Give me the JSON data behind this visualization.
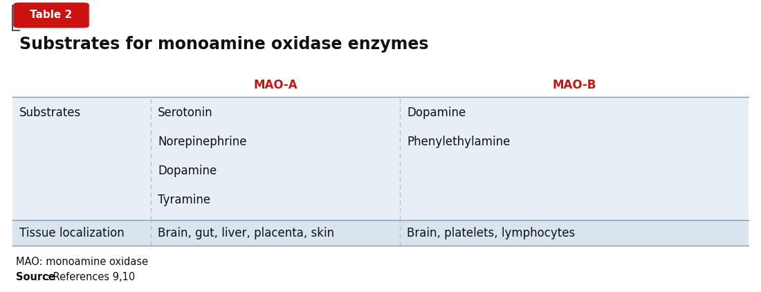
{
  "title": "Substrates for monoamine oxidase enzymes",
  "table_label": "Table 2",
  "bg_color": "#ffffff",
  "table_bg_light": "#e8eef5",
  "table_bg_dark": "#d8e4ee",
  "header_color": "#cc1111",
  "border_color": "#9aabb8",
  "dashed_color": "#aabbcc",
  "col_headers": [
    "MAO-A",
    "MAO-B"
  ],
  "rows": [
    {
      "label": "Substrates",
      "col1": [
        "Serotonin",
        "Norepinephrine",
        "Dopamine",
        "Tyramine"
      ],
      "col2": [
        "Dopamine",
        "Phenylethylamine"
      ]
    },
    {
      "label": "Tissue localization",
      "col1": [
        "Brain, gut, liver, placenta, skin"
      ],
      "col2": [
        "Brain, platelets, lymphocytes"
      ]
    }
  ],
  "footnote1": "MAO: monoamine oxidase",
  "footnote2_bold": "Source",
  "footnote2_normal": ": References 9,10",
  "title_fontsize": 17,
  "header_fontsize": 12,
  "body_fontsize": 12,
  "footnote_fontsize": 10.5
}
